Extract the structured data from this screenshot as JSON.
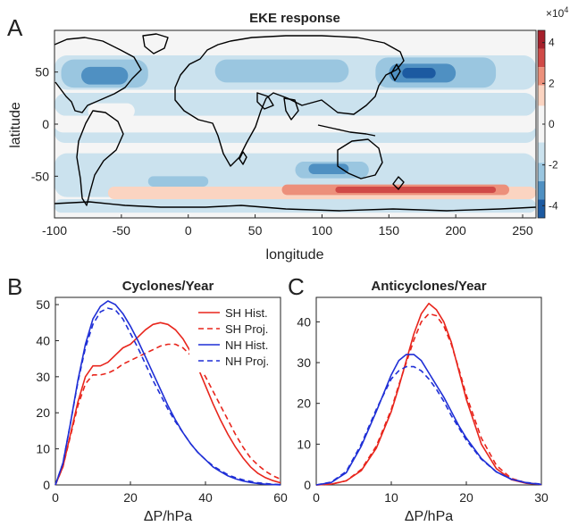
{
  "panel_labels": [
    "A",
    "B",
    "C"
  ],
  "colors": {
    "sh": "#e8251c",
    "nh": "#1f2fd6",
    "land_bg": "#f5f5f5",
    "coast": "#000000"
  },
  "chart_data": [
    {
      "id": "A",
      "type": "heatmap",
      "title": "EKE response",
      "xlabel": "longitude",
      "ylabel": "latitude",
      "xlim": [
        -100,
        260
      ],
      "ylim": [
        -90,
        90
      ],
      "xticks": [
        "-100",
        "-50",
        "0",
        "50",
        "100",
        "150",
        "200",
        "250"
      ],
      "yticks": [
        "50",
        "0",
        "-50"
      ],
      "colorbar": {
        "exponent_label": "×10",
        "exponent_sup": "4",
        "ticks": [
          "4",
          "2",
          "0",
          "-2",
          "-4"
        ],
        "range": [
          -4.6,
          4.6
        ],
        "levels": [
          {
            "lo": 3.7,
            "hi": 4.6,
            "color": "#a6202b"
          },
          {
            "lo": 2.8,
            "hi": 3.7,
            "color": "#d04a47"
          },
          {
            "lo": 1.9,
            "hi": 2.8,
            "color": "#ec907b"
          },
          {
            "lo": 0.9,
            "hi": 1.9,
            "color": "#fbd4c1"
          },
          {
            "lo": -0.9,
            "hi": 0.9,
            "color": "#f5f5f5"
          },
          {
            "lo": -1.9,
            "hi": -0.9,
            "color": "#cbe2ee"
          },
          {
            "lo": -2.8,
            "hi": -1.9,
            "color": "#9ac6e0"
          },
          {
            "lo": -3.7,
            "hi": -2.8,
            "color": "#4f90c2"
          },
          {
            "lo": -4.6,
            "hi": -3.7,
            "color": "#1c5aa1"
          }
        ]
      },
      "anomalies": [
        {
          "lon": -100,
          "lat_from": 8,
          "lon_to": 260,
          "lat_to": 30,
          "value": -1.2
        },
        {
          "lon": -100,
          "lat_from": 33,
          "lon_to": 260,
          "lat_to": 66,
          "value": -1.4
        },
        {
          "lon": -100,
          "lat_from": -70,
          "lon_to": 260,
          "lat_to": -28,
          "value": -1.3
        },
        {
          "lon": -100,
          "lat_from": -18,
          "lon_to": 260,
          "lat_to": 2,
          "value": -1.1
        },
        {
          "lon": -100,
          "lat_from": -72,
          "lon_to": 260,
          "lat_to": -85,
          "value": -1.2
        },
        {
          "lon": -95,
          "lat_from": 35,
          "lon_to": -30,
          "lat_to": 62,
          "value": -2.4
        },
        {
          "lon": -80,
          "lat_from": 38,
          "lon_to": -45,
          "lat_to": 55,
          "value": -3.4
        },
        {
          "lon": 140,
          "lat_from": 35,
          "lon_to": 230,
          "lat_to": 64,
          "value": -2.4
        },
        {
          "lon": 150,
          "lat_from": 40,
          "lon_to": 200,
          "lat_to": 58,
          "value": -3.4
        },
        {
          "lon": 160,
          "lat_from": 44,
          "lon_to": 185,
          "lat_to": 54,
          "value": -4.2
        },
        {
          "lon": 80,
          "lat_from": -36,
          "lon_to": 135,
          "lat_to": -52,
          "value": -2.4
        },
        {
          "lon": 90,
          "lat_from": -38,
          "lon_to": 120,
          "lat_to": -48,
          "value": -3.3
        },
        {
          "lon": 20,
          "lat_from": 40,
          "lon_to": 120,
          "lat_to": 62,
          "value": -2.2
        },
        {
          "lon": -30,
          "lat_from": -50,
          "lon_to": 15,
          "lat_to": -60,
          "value": -2.0
        },
        {
          "lon": -75,
          "lat_from": 5,
          "lon_to": -40,
          "lat_to": 20,
          "value": 0.0
        },
        {
          "lon": -100,
          "lat_from": -8,
          "lon_to": 260,
          "lat_to": 8,
          "value": 0.0
        },
        {
          "lon": -60,
          "lat_from": -60,
          "lon_to": 260,
          "lat_to": -72,
          "value": 1.3
        },
        {
          "lon": 70,
          "lat_from": -58,
          "lon_to": 240,
          "lat_to": -68,
          "value": 2.3
        },
        {
          "lon": 110,
          "lat_from": -60,
          "lon_to": 230,
          "lat_to": -66,
          "value": 3.2
        }
      ]
    },
    {
      "id": "B",
      "type": "line",
      "title": "Cyclones/Year",
      "xlabel": "ΔP/hPa",
      "ylabel": "",
      "xlim": [
        0,
        60
      ],
      "ylim": [
        0,
        52
      ],
      "xticks": [
        0,
        20,
        40,
        60
      ],
      "yticks": [
        0,
        10,
        20,
        30,
        40,
        50
      ],
      "legend_position": "top-right",
      "series": [
        {
          "name": "SH Hist.",
          "color": "#e8251c",
          "dash": false,
          "x": [
            0,
            2,
            4,
            6,
            8,
            10,
            12,
            14,
            16,
            18,
            20,
            22,
            24,
            26,
            28,
            30,
            32,
            34,
            36,
            38,
            40,
            42,
            44,
            46,
            48,
            50,
            52,
            54,
            56,
            58,
            60
          ],
          "y": [
            0,
            5,
            14,
            23,
            30,
            33,
            33,
            34,
            36,
            38,
            39,
            41,
            43,
            44.5,
            45,
            44.5,
            43,
            40.5,
            37,
            32.5,
            27.5,
            22.5,
            18,
            14,
            10.5,
            7.5,
            5,
            3.2,
            2,
            1.2,
            0.6
          ]
        },
        {
          "name": "SH Proj.",
          "color": "#e8251c",
          "dash": true,
          "x": [
            0,
            2,
            4,
            6,
            8,
            10,
            12,
            14,
            16,
            18,
            20,
            22,
            24,
            26,
            28,
            30,
            32,
            34,
            36,
            38,
            40,
            42,
            44,
            46,
            48,
            50,
            52,
            54,
            56,
            58,
            60
          ],
          "y": [
            0,
            5,
            13.5,
            22,
            28,
            30.5,
            30.5,
            31,
            32,
            33.5,
            34.5,
            35.5,
            36.5,
            37.5,
            38.5,
            39,
            39,
            38,
            36,
            33.5,
            30,
            26,
            22,
            18,
            14,
            10.5,
            7.5,
            5.5,
            3.8,
            2.5,
            1.6
          ]
        },
        {
          "name": "NH Hist.",
          "color": "#1f2fd6",
          "dash": false,
          "x": [
            0,
            2,
            4,
            6,
            8,
            10,
            12,
            14,
            16,
            18,
            20,
            22,
            24,
            26,
            28,
            30,
            32,
            34,
            36,
            38,
            40,
            42,
            44,
            46,
            48,
            50,
            52,
            54,
            56,
            58,
            60
          ],
          "y": [
            0,
            6,
            17,
            29,
            39,
            46,
            49.5,
            51,
            50,
            47.5,
            44,
            40,
            35.5,
            31,
            26.5,
            22,
            18,
            14.5,
            11.5,
            9,
            7,
            5,
            3.7,
            2.5,
            1.7,
            1.1,
            0.7,
            0.4,
            0.2,
            0.1,
            0
          ]
        },
        {
          "name": "NH Proj.",
          "color": "#1f2fd6",
          "dash": true,
          "x": [
            0,
            2,
            4,
            6,
            8,
            10,
            12,
            14,
            16,
            18,
            20,
            22,
            24,
            26,
            28,
            30,
            32,
            34,
            36,
            38,
            40,
            42,
            44,
            46,
            48,
            50,
            52,
            54,
            56,
            58,
            60
          ],
          "y": [
            0,
            6,
            17,
            28.5,
            38,
            44.5,
            48,
            49,
            48.5,
            46,
            42,
            38,
            33.5,
            29,
            25,
            21,
            17.5,
            14.5,
            11.5,
            9,
            7,
            5.3,
            4,
            2.8,
            2,
            1.4,
            1,
            0.6,
            0.4,
            0.2,
            0.1
          ]
        }
      ]
    },
    {
      "id": "C",
      "type": "line",
      "title": "Anticyclones/Year",
      "xlabel": "ΔP/hPa",
      "ylabel": "",
      "xlim": [
        0,
        30
      ],
      "ylim": [
        0,
        46
      ],
      "xticks": [
        0,
        10,
        20,
        30
      ],
      "yticks": [
        0,
        10,
        20,
        30,
        40
      ],
      "series": [
        {
          "name": "SH Hist.",
          "color": "#e8251c",
          "dash": false,
          "x": [
            0,
            2,
            4,
            6,
            8,
            10,
            11,
            12,
            13,
            14,
            15,
            16,
            17,
            18,
            19,
            20,
            22,
            24,
            26,
            28,
            30
          ],
          "y": [
            0,
            0.2,
            1,
            3.5,
            9,
            18,
            24,
            30.5,
            37,
            42,
            44.5,
            43,
            40,
            35,
            28,
            21,
            10,
            4,
            1.3,
            0.4,
            0.1
          ]
        },
        {
          "name": "SH Proj.",
          "color": "#e8251c",
          "dash": true,
          "x": [
            0,
            2,
            4,
            6,
            8,
            10,
            11,
            12,
            13,
            14,
            15,
            16,
            17,
            18,
            19,
            20,
            22,
            24,
            26,
            28,
            30
          ],
          "y": [
            0,
            0.2,
            1,
            3.8,
            9.5,
            18.5,
            24.5,
            30,
            35.5,
            40,
            42,
            41.5,
            39,
            34.5,
            28.5,
            22,
            11.5,
            4.8,
            1.6,
            0.5,
            0.1
          ]
        },
        {
          "name": "NH Hist.",
          "color": "#1f2fd6",
          "dash": false,
          "x": [
            0,
            2,
            4,
            6,
            8,
            10,
            11,
            12,
            13,
            14,
            15,
            16,
            17,
            18,
            19,
            20,
            22,
            24,
            26,
            28,
            30
          ],
          "y": [
            0,
            0.6,
            3,
            9.5,
            18,
            27,
            30.5,
            32,
            32,
            30.5,
            27.5,
            24.5,
            21.5,
            18,
            14.5,
            11.5,
            6.5,
            3.2,
            1.4,
            0.5,
            0.1
          ]
        },
        {
          "name": "NH Proj.",
          "color": "#1f2fd6",
          "dash": true,
          "x": [
            0,
            2,
            4,
            6,
            8,
            10,
            11,
            12,
            13,
            14,
            15,
            16,
            17,
            18,
            19,
            20,
            22,
            24,
            26,
            28,
            30
          ],
          "y": [
            0,
            0.7,
            3.3,
            10,
            18.5,
            26,
            28,
            29,
            29,
            28,
            26,
            23.5,
            20.5,
            17,
            14,
            11,
            6.3,
            3.2,
            1.4,
            0.6,
            0.2
          ]
        }
      ]
    }
  ]
}
